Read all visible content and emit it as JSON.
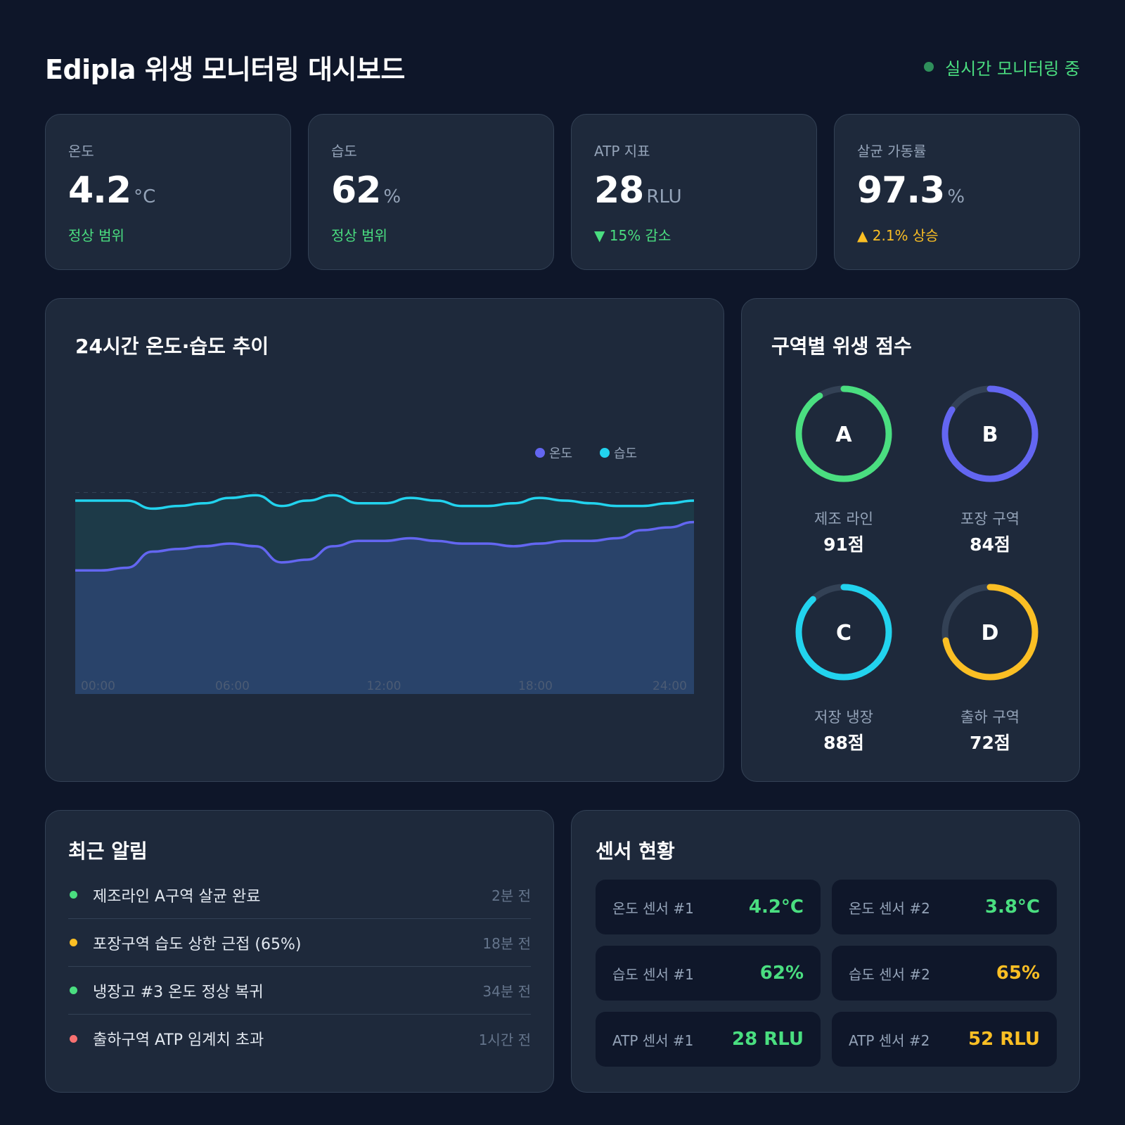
{
  "header": {
    "title": "Edipla 위생 모니터링 대시보드",
    "status": "실시간 모니터링 중"
  },
  "kpis": [
    {
      "label": "온도",
      "value": "4.2",
      "unit": "°C",
      "sub": "정상 범위",
      "tone": "ok"
    },
    {
      "label": "습도",
      "value": "62",
      "unit": "%",
      "sub": "정상 범위",
      "tone": "ok"
    },
    {
      "label": "ATP 지표",
      "value": "28",
      "unit": " RLU",
      "sub": "▼ 15% 감소",
      "tone": "ok"
    },
    {
      "label": "살균 가동률",
      "value": "97.3",
      "unit": "%",
      "sub": "▲ 2.1% 상승",
      "tone": "warn"
    }
  ],
  "chart": {
    "title": "24시간 온도·습도 추이"
  },
  "chart_data": {
    "type": "area",
    "title": "24시간 온도·습도 추이",
    "x_labels": [
      "00:00",
      "06:00",
      "12:00",
      "18:00",
      "24:00"
    ],
    "x": [
      0,
      1,
      2,
      3,
      4,
      5,
      6,
      7,
      8,
      9,
      10,
      11,
      12,
      13,
      14,
      15,
      16,
      17,
      18,
      19,
      20,
      21,
      22,
      23,
      24
    ],
    "grid": true,
    "legend": "top-right",
    "series": [
      {
        "name": "온도",
        "color": "#6366f1",
        "values": [
          0.46,
          0.46,
          0.47,
          0.53,
          0.54,
          0.55,
          0.56,
          0.55,
          0.49,
          0.5,
          0.55,
          0.57,
          0.57,
          0.58,
          0.57,
          0.56,
          0.56,
          0.55,
          0.56,
          0.57,
          0.57,
          0.58,
          0.61,
          0.62,
          0.64
        ]
      },
      {
        "name": "습도",
        "color": "#22d3ee",
        "values": [
          0.72,
          0.72,
          0.72,
          0.69,
          0.7,
          0.71,
          0.73,
          0.74,
          0.7,
          0.72,
          0.74,
          0.71,
          0.71,
          0.73,
          0.72,
          0.7,
          0.7,
          0.71,
          0.73,
          0.72,
          0.71,
          0.7,
          0.7,
          0.71,
          0.72
        ]
      }
    ]
  },
  "zones": {
    "title": "구역별 위생 점수",
    "items": [
      {
        "letter": "A",
        "name": "제조 라인",
        "score": "91점",
        "value": 91,
        "color": "#4ade80"
      },
      {
        "letter": "B",
        "name": "포장 구역",
        "score": "84점",
        "value": 84,
        "color": "#6366f1"
      },
      {
        "letter": "C",
        "name": "저장 냉장",
        "score": "88점",
        "value": 88,
        "color": "#22d3ee"
      },
      {
        "letter": "D",
        "name": "출하 구역",
        "score": "72점",
        "value": 72,
        "color": "#fbbf24"
      }
    ]
  },
  "alerts": {
    "title": "최근 알림",
    "items": [
      {
        "text": "제조라인 A구역 살균 완료",
        "time": "2분 전",
        "color": "#4ade80"
      },
      {
        "text": "포장구역 습도 상한 근접 (65%)",
        "time": "18분 전",
        "color": "#fbbf24"
      },
      {
        "text": "냉장고 #3 온도 정상 복귀",
        "time": "34분 전",
        "color": "#4ade80"
      },
      {
        "text": "출하구역 ATP 임계치 초과",
        "time": "1시간 전",
        "color": "#f87171"
      }
    ]
  },
  "sensors": {
    "title": "센서 현황",
    "items": [
      {
        "label": "온도 센서 #1",
        "value": "4.2°C",
        "color": "#4ade80"
      },
      {
        "label": "온도 센서 #2",
        "value": "3.8°C",
        "color": "#4ade80"
      },
      {
        "label": "습도 센서 #1",
        "value": "62%",
        "color": "#4ade80"
      },
      {
        "label": "습도 센서 #2",
        "value": "65%",
        "color": "#fbbf24"
      },
      {
        "label": "ATP 센서 #1",
        "value": "28 RLU",
        "color": "#4ade80"
      },
      {
        "label": "ATP 센서 #2",
        "value": "52 RLU",
        "color": "#fbbf24"
      }
    ]
  }
}
